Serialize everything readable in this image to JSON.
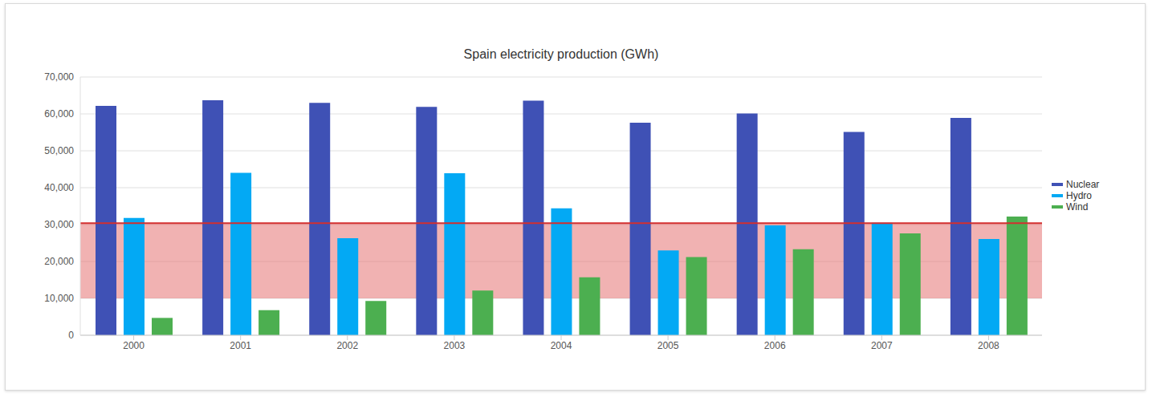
{
  "chart_data": {
    "type": "bar",
    "title": "Spain electricity production (GWh)",
    "categories": [
      "2000",
      "2001",
      "2002",
      "2003",
      "2004",
      "2005",
      "2006",
      "2007",
      "2008"
    ],
    "series": [
      {
        "name": "Nuclear",
        "color": "#3f51b5",
        "values": [
          62200,
          63700,
          63000,
          61900,
          63600,
          57600,
          60100,
          55100,
          58900
        ]
      },
      {
        "name": "Hydro",
        "color": "#03a9f4",
        "values": [
          31800,
          44000,
          26300,
          43900,
          34400,
          23000,
          29800,
          30500,
          26100
        ]
      },
      {
        "name": "Wind",
        "color": "#4caf50",
        "values": [
          4700,
          6800,
          9300,
          12100,
          15700,
          21200,
          23300,
          27600,
          32200
        ]
      }
    ],
    "ylim": [
      0,
      70000
    ],
    "yticks": [
      0,
      {
        "value": 10000,
        "label": "10,000"
      },
      {
        "value": 20000,
        "label": "20,000"
      },
      {
        "value": 30000,
        "label": "30,000"
      },
      {
        "value": 40000,
        "label": "40,000"
      },
      {
        "value": 50000,
        "label": "50,000"
      },
      {
        "value": 60000,
        "label": "60,000"
      },
      {
        "value": 70000,
        "label": "70,000"
      }
    ],
    "grid": true,
    "legend": "right",
    "reference_line": 30400,
    "reference_band": [
      10000,
      30400
    ]
  }
}
